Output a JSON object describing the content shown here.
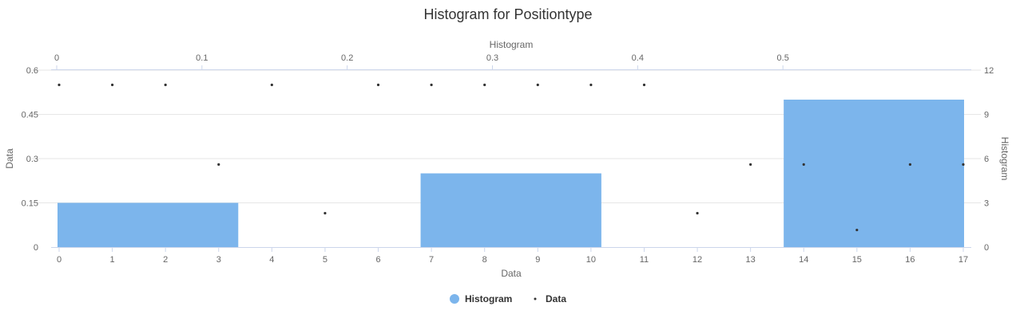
{
  "chart_data": {
    "type": "bar",
    "title": "Histogram for Positiontype",
    "colors": {
      "histogram": "#7cb5ec",
      "data": "#333333",
      "grid": "#e6e6e6",
      "axis": "#ccd6eb"
    },
    "axes": {
      "x_bottom": {
        "title": "Data",
        "range": [
          0,
          17
        ],
        "ticks": [
          "0",
          "1",
          "2",
          "3",
          "4",
          "5",
          "6",
          "7",
          "8",
          "9",
          "10",
          "11",
          "12",
          "13",
          "14",
          "15",
          "16",
          "17"
        ]
      },
      "x_top": {
        "title": "Histogram",
        "range": [
          0,
          0.6
        ],
        "ticks": [
          "0",
          "0.1",
          "0.2",
          "0.3",
          "0.4",
          "0.5"
        ]
      },
      "y_left": {
        "title": "Data",
        "range": [
          0,
          0.6
        ],
        "ticks": [
          "0",
          "0.15",
          "0.3",
          "0.45",
          "0.6"
        ]
      },
      "y_right": {
        "title": "Histogram",
        "range": [
          0,
          12
        ],
        "ticks": [
          "0",
          "3",
          "6",
          "9",
          "12"
        ]
      }
    },
    "series": [
      {
        "name": "Histogram",
        "type": "bar",
        "bins": [
          {
            "x0": 0.0,
            "x1": 0.125,
            "y": 3
          },
          {
            "x0": 0.25,
            "x1": 0.375,
            "y": 5
          },
          {
            "x0": 0.5,
            "x1": 0.625,
            "y": 10
          }
        ]
      },
      {
        "name": "Data",
        "type": "scatter",
        "points": [
          {
            "x": 0,
            "y": 0.55
          },
          {
            "x": 1,
            "y": 0.55
          },
          {
            "x": 2,
            "y": 0.55
          },
          {
            "x": 3,
            "y": 0.28
          },
          {
            "x": 4,
            "y": 0.55
          },
          {
            "x": 5,
            "y": 0.115
          },
          {
            "x": 6,
            "y": 0.55
          },
          {
            "x": 7,
            "y": 0.55
          },
          {
            "x": 8,
            "y": 0.55
          },
          {
            "x": 9,
            "y": 0.55
          },
          {
            "x": 10,
            "y": 0.55
          },
          {
            "x": 11,
            "y": 0.55
          },
          {
            "x": 12,
            "y": 0.115
          },
          {
            "x": 13,
            "y": 0.28
          },
          {
            "x": 14,
            "y": 0.28
          },
          {
            "x": 15,
            "y": 0.058
          },
          {
            "x": 16,
            "y": 0.28
          },
          {
            "x": 17,
            "y": 0.28
          }
        ]
      }
    ],
    "legend": {
      "placement": "bottom-center",
      "items": [
        "Histogram",
        "Data"
      ]
    },
    "grid": true
  }
}
